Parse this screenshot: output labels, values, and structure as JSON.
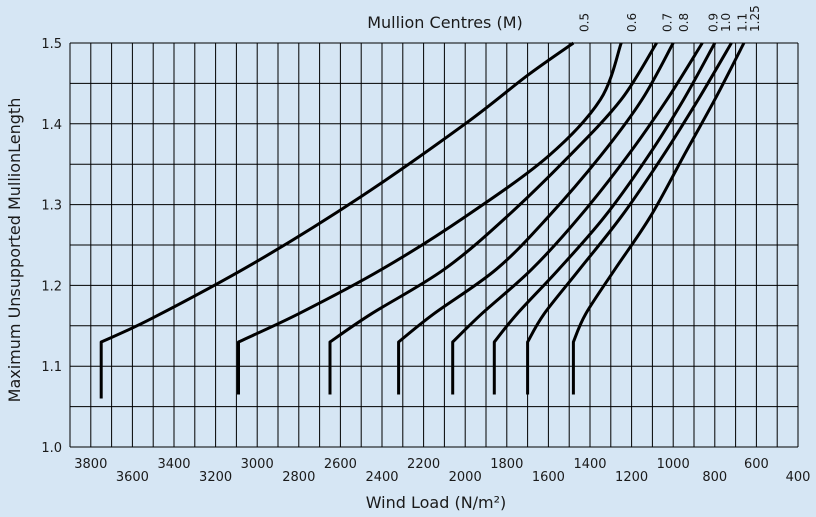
{
  "chart_data": {
    "type": "line",
    "xlabel": "Wind Load (N/m²)",
    "ylabel": "Maximum Unsupported MullionLength",
    "series_axis_label": "Mullion Centres (M)",
    "xlim": [
      3900,
      400
    ],
    "ylim": [
      1.0,
      1.5
    ],
    "x_ticks": [
      3800,
      3600,
      3400,
      3200,
      3000,
      2800,
      2600,
      2400,
      2200,
      2000,
      1800,
      1600,
      1400,
      1200,
      1000,
      800,
      600,
      400
    ],
    "y_ticks": [
      "1.0",
      "1.1",
      "1.2",
      "1.3",
      "1.4",
      "1.5"
    ],
    "grid": true,
    "colors": {
      "background": "#d6e6f4",
      "lines": "#000000"
    },
    "series": [
      {
        "name": "0.5",
        "x": [
          3750,
          3750,
          3500,
          3000,
          2500,
          2000,
          1700,
          1480
        ],
        "y": [
          1.06,
          1.13,
          1.16,
          1.23,
          1.31,
          1.4,
          1.46,
          1.5
        ]
      },
      {
        "name": "0.6",
        "x": [
          3090,
          3090,
          2800,
          2400,
          2000,
          1600,
          1350,
          1250
        ],
        "y": [
          1.065,
          1.13,
          1.165,
          1.22,
          1.285,
          1.36,
          1.43,
          1.5
        ]
      },
      {
        "name": "0.7",
        "x": [
          2650,
          2650,
          2450,
          2100,
          1800,
          1500,
          1250,
          1080
        ],
        "y": [
          1.065,
          1.13,
          1.165,
          1.22,
          1.285,
          1.36,
          1.43,
          1.5
        ]
      },
      {
        "name": "0.8",
        "x": [
          2320,
          2320,
          2150,
          1850,
          1600,
          1350,
          1150,
          1000
        ],
        "y": [
          1.065,
          1.13,
          1.165,
          1.22,
          1.285,
          1.36,
          1.43,
          1.5
        ]
      },
      {
        "name": "0.9",
        "x": [
          2060,
          2060,
          1920,
          1680,
          1450,
          1220,
          1030,
          860
        ],
        "y": [
          1.065,
          1.13,
          1.165,
          1.22,
          1.285,
          1.36,
          1.43,
          1.5
        ]
      },
      {
        "name": "1.0",
        "x": [
          1860,
          1860,
          1750,
          1550,
          1330,
          1120,
          950,
          800
        ],
        "y": [
          1.065,
          1.13,
          1.165,
          1.22,
          1.285,
          1.36,
          1.43,
          1.5
        ]
      },
      {
        "name": "1.1",
        "x": [
          1700,
          1700,
          1620,
          1450,
          1250,
          1050,
          880,
          720
        ],
        "y": [
          1.065,
          1.13,
          1.165,
          1.22,
          1.285,
          1.36,
          1.43,
          1.5
        ]
      },
      {
        "name": "1.25",
        "x": [
          1480,
          1480,
          1420,
          1280,
          1110,
          950,
          800,
          660
        ],
        "y": [
          1.065,
          1.13,
          1.165,
          1.22,
          1.285,
          1.36,
          1.43,
          1.5
        ]
      }
    ]
  }
}
